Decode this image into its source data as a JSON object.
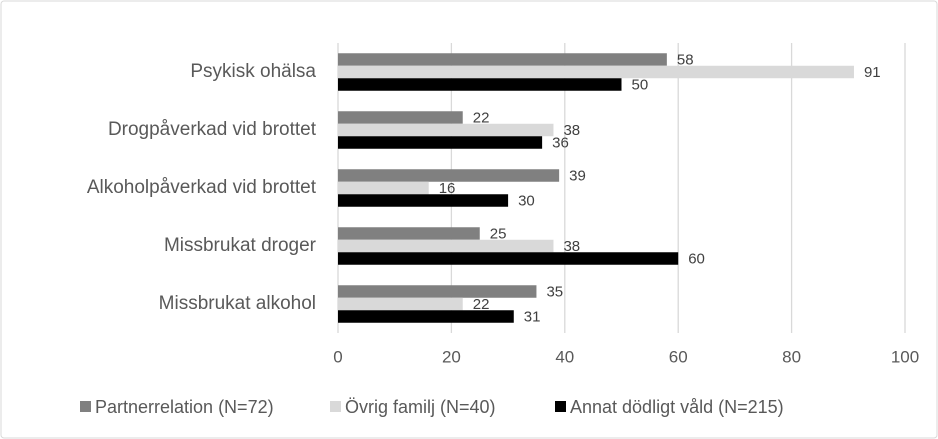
{
  "chart_data": {
    "type": "bar",
    "orientation": "horizontal",
    "categories": [
      "Psykisk ohälsa",
      "Drogpåverkad vid brottet",
      "Alkoholpåverkad vid brottet",
      "Missbrukat droger",
      "Missbrukat alkohol"
    ],
    "series": [
      {
        "name": "Partnerrelation (N=72)",
        "color": "#808080",
        "values": [
          58,
          22,
          39,
          25,
          35
        ]
      },
      {
        "name": "Övrig familj (N=40)",
        "color": "#d9d9d9",
        "values": [
          91,
          38,
          16,
          38,
          22
        ]
      },
      {
        "name": "Annat dödligt våld (N=215)",
        "color": "#000000",
        "values": [
          50,
          36,
          30,
          60,
          31
        ]
      }
    ],
    "xlim": [
      0,
      100
    ],
    "xticks": [
      0,
      20,
      40,
      60,
      80,
      100
    ],
    "grid": true,
    "legend": "bottom"
  }
}
